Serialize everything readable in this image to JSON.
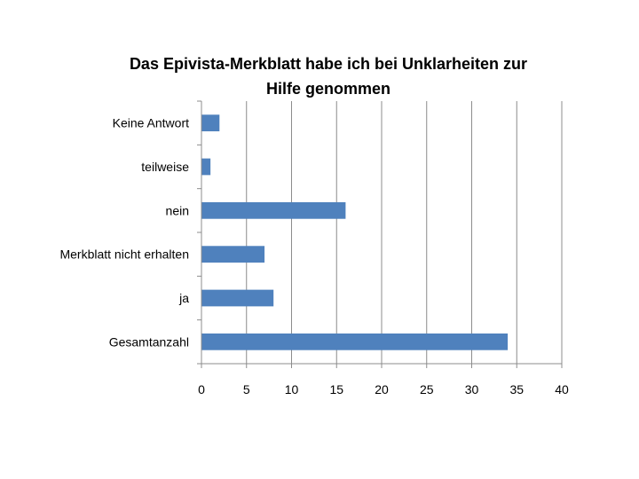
{
  "chart_data": {
    "type": "bar",
    "orientation": "horizontal",
    "title_lines": [
      "Das Epivista-Merkblatt habe ich bei Unklarheiten zur",
      "Hilfe genommen"
    ],
    "categories": [
      "Keine Antwort",
      "teilweise",
      "nein",
      "Merkblatt nicht erhalten",
      "ja",
      "Gesamtanzahl"
    ],
    "values": [
      2,
      1,
      16,
      7,
      8,
      34
    ],
    "xlim": [
      0,
      40
    ],
    "xticks": [
      0,
      5,
      10,
      15,
      20,
      25,
      30,
      35,
      40
    ],
    "grid": "vertical",
    "legend": "none",
    "bar_color": "#4f81bd"
  }
}
